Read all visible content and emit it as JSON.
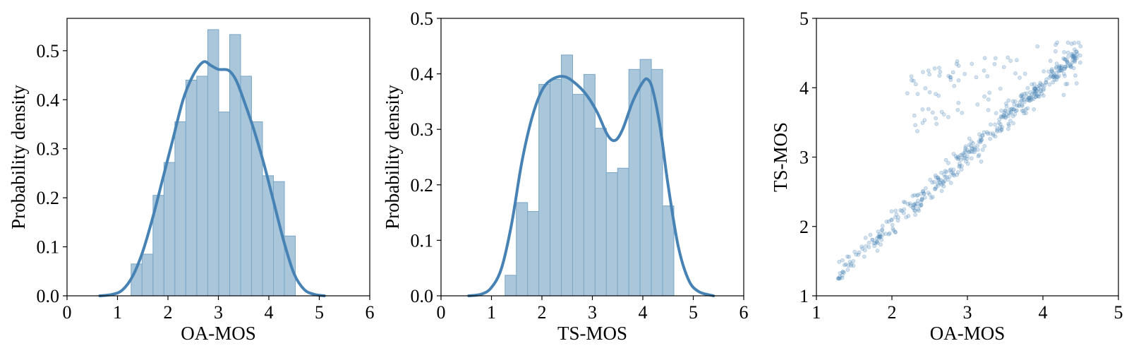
{
  "chart_data": [
    {
      "type": "histogram",
      "xlabel": "OA-MOS",
      "ylabel": "Probability density",
      "xlim": [
        0,
        6
      ],
      "ylim": [
        0,
        0.566
      ],
      "xticks": [
        "0",
        "1",
        "2",
        "3",
        "4",
        "5",
        "6"
      ],
      "yticks": [
        "0.0",
        "0.1",
        "0.2",
        "0.3",
        "0.4",
        "0.5"
      ],
      "bins": {
        "edges": [
          1.27,
          1.487,
          1.704,
          1.921,
          2.138,
          2.355,
          2.572,
          2.789,
          3.006,
          3.223,
          3.44,
          3.657,
          3.874,
          4.091,
          4.308,
          4.525
        ],
        "density": [
          0.065,
          0.085,
          0.205,
          0.272,
          0.355,
          0.44,
          0.448,
          0.543,
          0.375,
          0.533,
          0.448,
          0.355,
          0.245,
          0.233,
          0.122
        ]
      },
      "kde": {
        "x": [
          0.65,
          0.9,
          1.1,
          1.3,
          1.5,
          1.7,
          1.9,
          2.1,
          2.3,
          2.5,
          2.7,
          2.85,
          3.0,
          3.2,
          3.35,
          3.5,
          3.7,
          3.9,
          4.1,
          4.3,
          4.5,
          4.7,
          4.9,
          5.1
        ],
        "y": [
          0.0,
          0.003,
          0.012,
          0.04,
          0.09,
          0.16,
          0.24,
          0.32,
          0.4,
          0.45,
          0.477,
          0.47,
          0.462,
          0.46,
          0.44,
          0.4,
          0.34,
          0.27,
          0.19,
          0.11,
          0.045,
          0.013,
          0.003,
          0.0
        ]
      }
    },
    {
      "type": "histogram",
      "xlabel": "TS-MOS",
      "ylabel": "Probability density",
      "xlim": [
        0,
        6
      ],
      "ylim": [
        0,
        0.5
      ],
      "xticks": [
        "0",
        "1",
        "2",
        "3",
        "4",
        "5",
        "6"
      ],
      "yticks": [
        "0.0",
        "0.1",
        "0.2",
        "0.3",
        "0.4",
        "0.5"
      ],
      "bins": {
        "edges": [
          1.27,
          1.493,
          1.716,
          1.939,
          2.162,
          2.385,
          2.608,
          2.831,
          3.054,
          3.277,
          3.5,
          3.723,
          3.946,
          4.169,
          4.392,
          4.615
        ],
        "density": [
          0.037,
          0.168,
          0.152,
          0.381,
          0.39,
          0.434,
          0.363,
          0.399,
          0.302,
          0.222,
          0.23,
          0.408,
          0.426,
          0.408,
          0.162
        ]
      },
      "kde": {
        "x": [
          0.55,
          0.8,
          1.0,
          1.2,
          1.4,
          1.6,
          1.8,
          2.0,
          2.2,
          2.45,
          2.7,
          2.9,
          3.1,
          3.3,
          3.45,
          3.6,
          3.8,
          4.0,
          4.1,
          4.2,
          4.35,
          4.5,
          4.7,
          4.9,
          5.1,
          5.4
        ],
        "y": [
          0.0,
          0.003,
          0.015,
          0.05,
          0.13,
          0.24,
          0.32,
          0.37,
          0.39,
          0.395,
          0.38,
          0.36,
          0.33,
          0.29,
          0.28,
          0.3,
          0.35,
          0.385,
          0.39,
          0.37,
          0.3,
          0.2,
          0.09,
          0.03,
          0.008,
          0.0
        ]
      }
    },
    {
      "type": "scatter",
      "xlabel": "OA-MOS",
      "ylabel": "TS-MOS",
      "xlim": [
        1,
        5
      ],
      "ylim": [
        1,
        5
      ],
      "xticks": [
        "1",
        "2",
        "3",
        "4",
        "5"
      ],
      "yticks": [
        "1",
        "2",
        "3",
        "4",
        "5"
      ],
      "point_count": 520,
      "main_band": {
        "x_range": [
          1.27,
          4.5
        ],
        "trend": "y ≈ x",
        "spread": 0.16
      },
      "upper_cluster": {
        "x_range": [
          2.2,
          4.5
        ],
        "y_range": [
          3.5,
          4.6
        ]
      }
    }
  ],
  "colors": {
    "bar_fill": "#a9c6da",
    "bar_edge": "#7aa6c7",
    "kde_line": "#4682b4",
    "point": "#4682b4",
    "axis": "#000000"
  }
}
